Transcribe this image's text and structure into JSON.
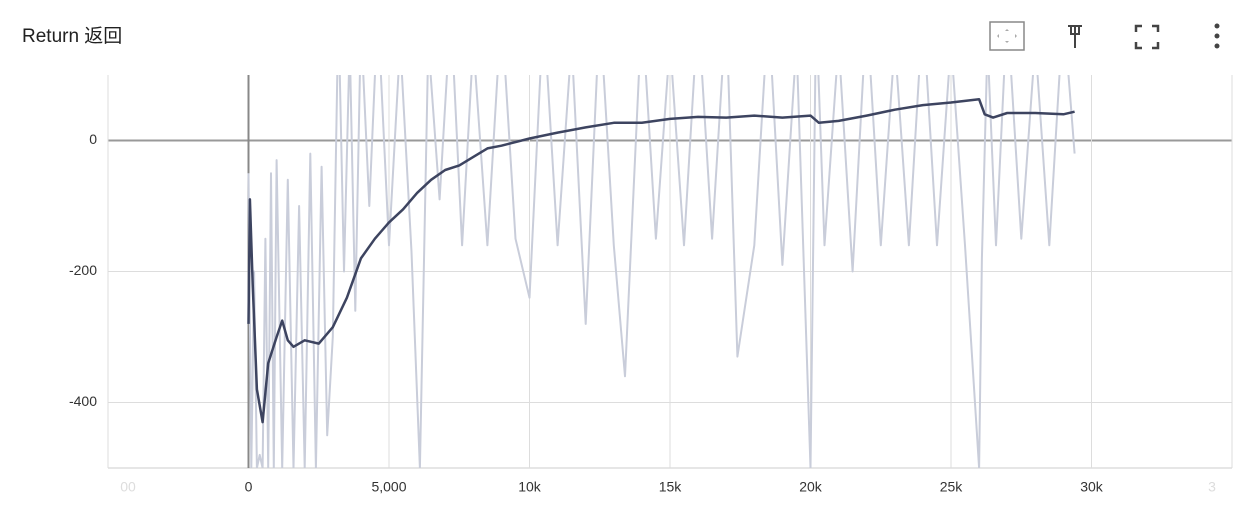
{
  "chart_data": {
    "type": "line",
    "title": "Return 返回",
    "xlim": [
      -5000,
      35000
    ],
    "ylim": [
      -500,
      100
    ],
    "xticks": [
      {
        "value": -5000,
        "label": "00"
      },
      0,
      {
        "value": 5000,
        "label": "5,000"
      },
      {
        "value": 10000,
        "label": "10k"
      },
      {
        "value": 15000,
        "label": "15k"
      },
      {
        "value": 20000,
        "label": "20k"
      },
      {
        "value": 25000,
        "label": "25k"
      },
      {
        "value": 30000,
        "label": "30k"
      },
      {
        "value": 35000,
        "label": "3"
      }
    ],
    "yticks": [
      -400,
      -200,
      0
    ],
    "grid": true,
    "series": [
      {
        "color": "#c9cdda",
        "x": [
          0,
          100,
          200,
          300,
          400,
          500,
          600,
          700,
          800,
          900,
          1000,
          1200,
          1400,
          1600,
          1800,
          2000,
          2200,
          2400,
          2600,
          2800,
          3000,
          3200,
          3400,
          3600,
          3800,
          4000,
          4300,
          4600,
          5000,
          5400,
          5800,
          6100,
          6400,
          6800,
          7200,
          7600,
          8000,
          8500,
          9000,
          9500,
          10000,
          10500,
          11000,
          11500,
          12000,
          12500,
          13000,
          13400,
          14000,
          14500,
          15000,
          15500,
          16000,
          16500,
          17000,
          17400,
          18000,
          18500,
          19000,
          19500,
          20000,
          20200,
          20500,
          21000,
          21500,
          22000,
          22500,
          23000,
          23500,
          24000,
          24500,
          25000,
          25500,
          26000,
          26100,
          26300,
          26600,
          27000,
          27500,
          28000,
          28500,
          29000,
          29400
        ],
        "values": [
          -50,
          -500,
          -200,
          -500,
          -480,
          -500,
          -150,
          -500,
          -50,
          -500,
          -30,
          -500,
          -60,
          -500,
          -100,
          -500,
          -20,
          -500,
          -40,
          -450,
          -300,
          200,
          -200,
          150,
          -260,
          180,
          -100,
          200,
          -160,
          150,
          -170,
          -500,
          150,
          -90,
          200,
          -160,
          150,
          -160,
          200,
          -150,
          -240,
          200,
          -160,
          150,
          -280,
          200,
          -160,
          -360,
          200,
          -150,
          150,
          -160,
          200,
          -150,
          200,
          -330,
          -160,
          200,
          -190,
          150,
          -500,
          200,
          -160,
          150,
          -200,
          200,
          -160,
          150,
          -160,
          200,
          -160,
          150,
          -160,
          -500,
          -180,
          150,
          -160,
          200,
          -150,
          150,
          -160,
          200,
          -20
        ]
      },
      {
        "color": "#3d4460",
        "x": [
          0,
          50,
          150,
          300,
          500,
          700,
          1000,
          1200,
          1400,
          1600,
          2000,
          2500,
          3000,
          3500,
          4000,
          4500,
          5000,
          5500,
          6000,
          6500,
          7000,
          7500,
          8000,
          8500,
          9000,
          10000,
          11000,
          12000,
          13000,
          14000,
          15000,
          16000,
          17000,
          18000,
          19000,
          20000,
          20300,
          21000,
          22000,
          23000,
          24000,
          25000,
          26000,
          26200,
          26500,
          27000,
          28000,
          29000,
          29400
        ],
        "values": [
          -280,
          -90,
          -220,
          -380,
          -430,
          -340,
          -300,
          -275,
          -305,
          -315,
          -305,
          -310,
          -285,
          -240,
          -180,
          -150,
          -125,
          -105,
          -80,
          -60,
          -45,
          -38,
          -25,
          -12,
          -8,
          3,
          12,
          20,
          27,
          27,
          33,
          36,
          35,
          38,
          35,
          38,
          27,
          30,
          38,
          47,
          54,
          58,
          63,
          40,
          35,
          42,
          42,
          40,
          44
        ]
      }
    ]
  }
}
